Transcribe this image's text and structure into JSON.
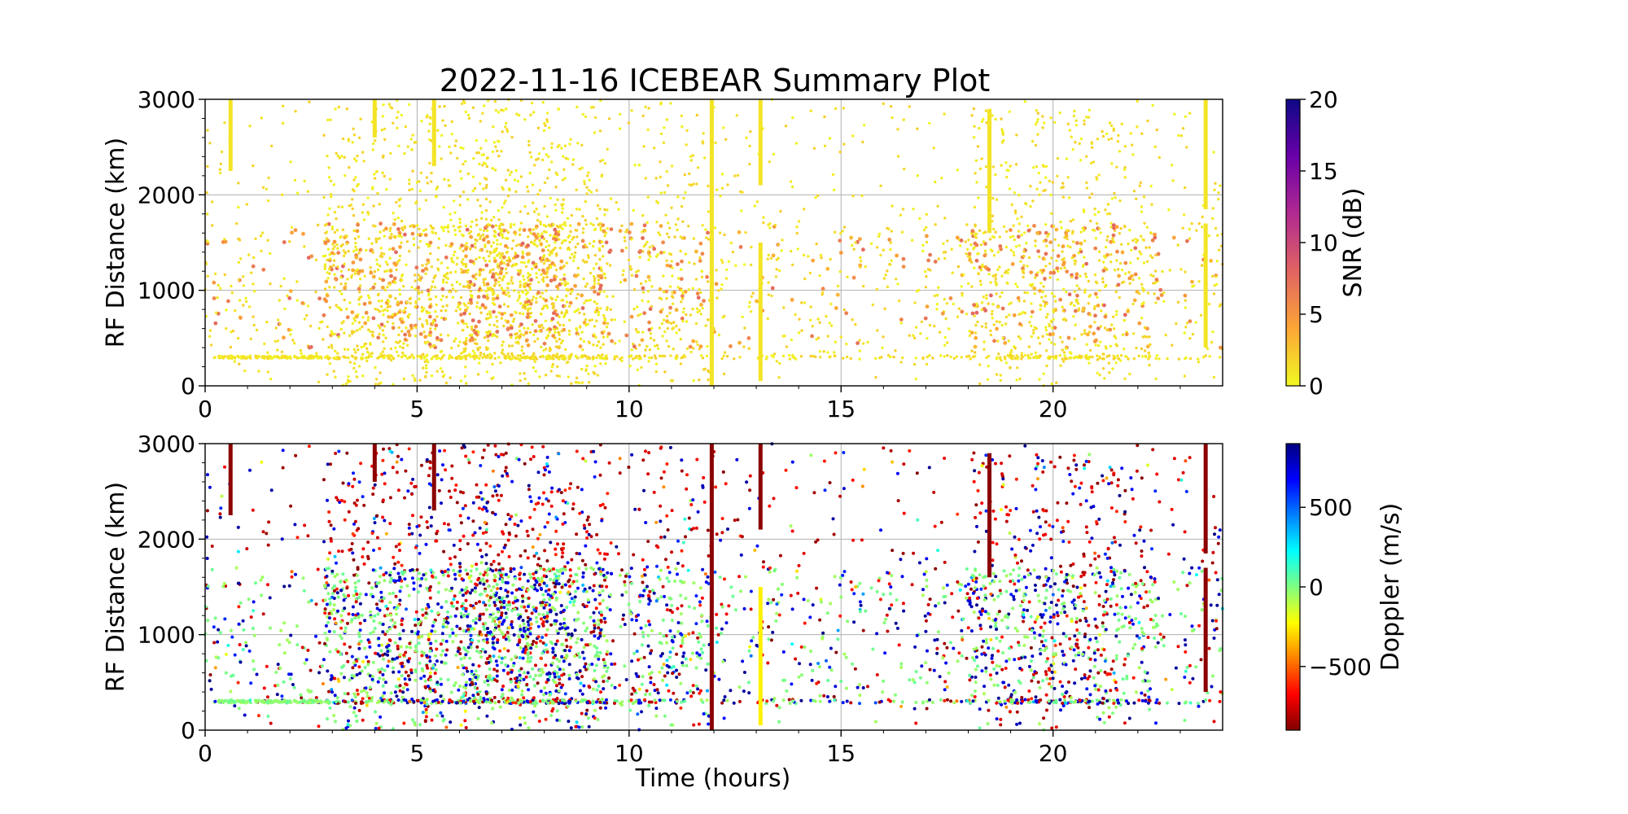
{
  "chart_data": {
    "title": "2022-11-16 ICEBEAR Summary Plot",
    "x_axis": {
      "label": "Time (hours)",
      "range": [
        0,
        24
      ],
      "ticks": [
        0,
        5,
        10,
        15,
        20
      ],
      "tick_labels": [
        "0",
        "5",
        "10",
        "15",
        "20"
      ]
    },
    "panels": [
      {
        "type": "scatter",
        "ylabel": "RF Distance (km)",
        "ylim": [
          0,
          3000
        ],
        "yticks": [
          0,
          1000,
          2000,
          3000
        ],
        "ytick_labels": [
          "0",
          "1000",
          "2000",
          "3000"
        ],
        "grid": true,
        "color_variable": "SNR",
        "colorbar": {
          "label": "SNR (dB)",
          "range": [
            0,
            20
          ],
          "ticks": [
            0,
            5,
            10,
            15,
            20
          ],
          "tick_labels": [
            "0",
            "5",
            "10",
            "15",
            "20"
          ],
          "colormap": "plasma_r",
          "stops": [
            "#f0f921",
            "#fca636",
            "#e16462",
            "#b12a90",
            "#6a00a8",
            "#0d0887"
          ]
        }
      },
      {
        "type": "scatter",
        "ylabel": "RF Distance (km)",
        "ylim": [
          0,
          3000
        ],
        "yticks": [
          0,
          1000,
          2000,
          3000
        ],
        "ytick_labels": [
          "0",
          "1000",
          "2000",
          "3000"
        ],
        "grid": true,
        "color_variable": "Doppler",
        "colorbar": {
          "label": "Doppler (m/s)",
          "range": [
            -900,
            900
          ],
          "ticks": [
            -500,
            0,
            500
          ],
          "tick_labels": [
            "−500",
            "0",
            "500"
          ],
          "colormap": "jet_r",
          "stops": [
            "#800000",
            "#ff0000",
            "#ff8000",
            "#ffff00",
            "#80ff80",
            "#00ffff",
            "#0080ff",
            "#0000ff",
            "#000080"
          ]
        }
      }
    ],
    "vertical_streaks": [
      {
        "time": 0.6,
        "range_km": [
          2250,
          3000
        ],
        "snr_db": 1,
        "doppler_ms": -880
      },
      {
        "time": 4.0,
        "range_km": [
          2600,
          3000
        ],
        "snr_db": 1,
        "doppler_ms": -880
      },
      {
        "time": 5.4,
        "range_km": [
          2300,
          3000
        ],
        "snr_db": 1,
        "doppler_ms": -880
      },
      {
        "time": 11.95,
        "range_km": [
          0,
          3000
        ],
        "snr_db": 1,
        "doppler_ms": -880
      },
      {
        "time": 13.1,
        "range_km": [
          2100,
          3000
        ],
        "snr_db": 1,
        "doppler_ms": -880
      },
      {
        "time": 13.1,
        "range_km": [
          50,
          1500
        ],
        "snr_db": 1,
        "doppler_ms": -250
      },
      {
        "time": 18.5,
        "range_km": [
          1600,
          2900
        ],
        "snr_db": 1,
        "doppler_ms": -880
      },
      {
        "time": 23.6,
        "range_km": [
          1850,
          3000
        ],
        "snr_db": 1,
        "doppler_ms": -880
      },
      {
        "time": 23.6,
        "range_km": [
          400,
          1700
        ],
        "snr_db": 1,
        "doppler_ms": -880
      }
    ]
  }
}
